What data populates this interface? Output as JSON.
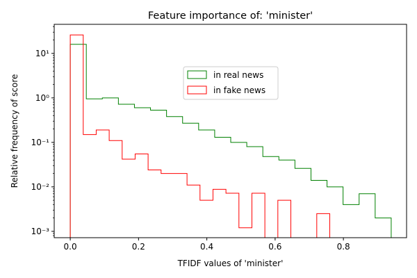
{
  "chart_data": {
    "type": "histogram-step",
    "title": "Feature importance of: 'minister'",
    "xlabel": "TFIDF values of 'minister'",
    "ylabel": "Relative frequency of score",
    "xlim": [
      -0.047,
      0.985
    ],
    "ylim": [
      0.00072,
      45
    ],
    "yscale": "log",
    "xticks": [
      0.0,
      0.2,
      0.4,
      0.6,
      0.8
    ],
    "xtick_labels": [
      "0.0",
      "0.2",
      "0.4",
      "0.6",
      "0.8"
    ],
    "yticks": [
      0.001,
      0.01,
      0.1,
      1,
      10
    ],
    "ytick_labels": [
      "10⁻³",
      "10⁻²",
      "10⁻¹",
      "10⁰",
      "10¹"
    ],
    "legend_position": "upper-center",
    "series": [
      {
        "name": "in real news",
        "color": "#008000",
        "edges": [
          0.0,
          0.047,
          0.094,
          0.141,
          0.188,
          0.235,
          0.282,
          0.329,
          0.376,
          0.423,
          0.47,
          0.517,
          0.564,
          0.611,
          0.658,
          0.705,
          0.752,
          0.799,
          0.846,
          0.893,
          0.94
        ],
        "values": [
          16,
          0.95,
          1.0,
          0.72,
          0.6,
          0.53,
          0.38,
          0.27,
          0.19,
          0.13,
          0.1,
          0.08,
          0.048,
          0.04,
          0.026,
          0.014,
          0.01,
          0.004,
          0.007,
          0.002
        ]
      },
      {
        "name": "in fake news",
        "color": "#ff0000",
        "edges": [
          0.0,
          0.038,
          0.076,
          0.114,
          0.152,
          0.19,
          0.228,
          0.266,
          0.304,
          0.342,
          0.38,
          0.418,
          0.456,
          0.494,
          0.532,
          0.57,
          0.608,
          0.646,
          0.684,
          0.722,
          0.76
        ],
        "values": [
          26,
          0.15,
          0.19,
          0.11,
          0.042,
          0.055,
          0.024,
          0.02,
          0.02,
          0.011,
          0.005,
          0.0088,
          0.0072,
          0.0012,
          0.0072,
          0.0001,
          0.005,
          0.0001,
          0.0001,
          0.0025
        ]
      }
    ]
  }
}
